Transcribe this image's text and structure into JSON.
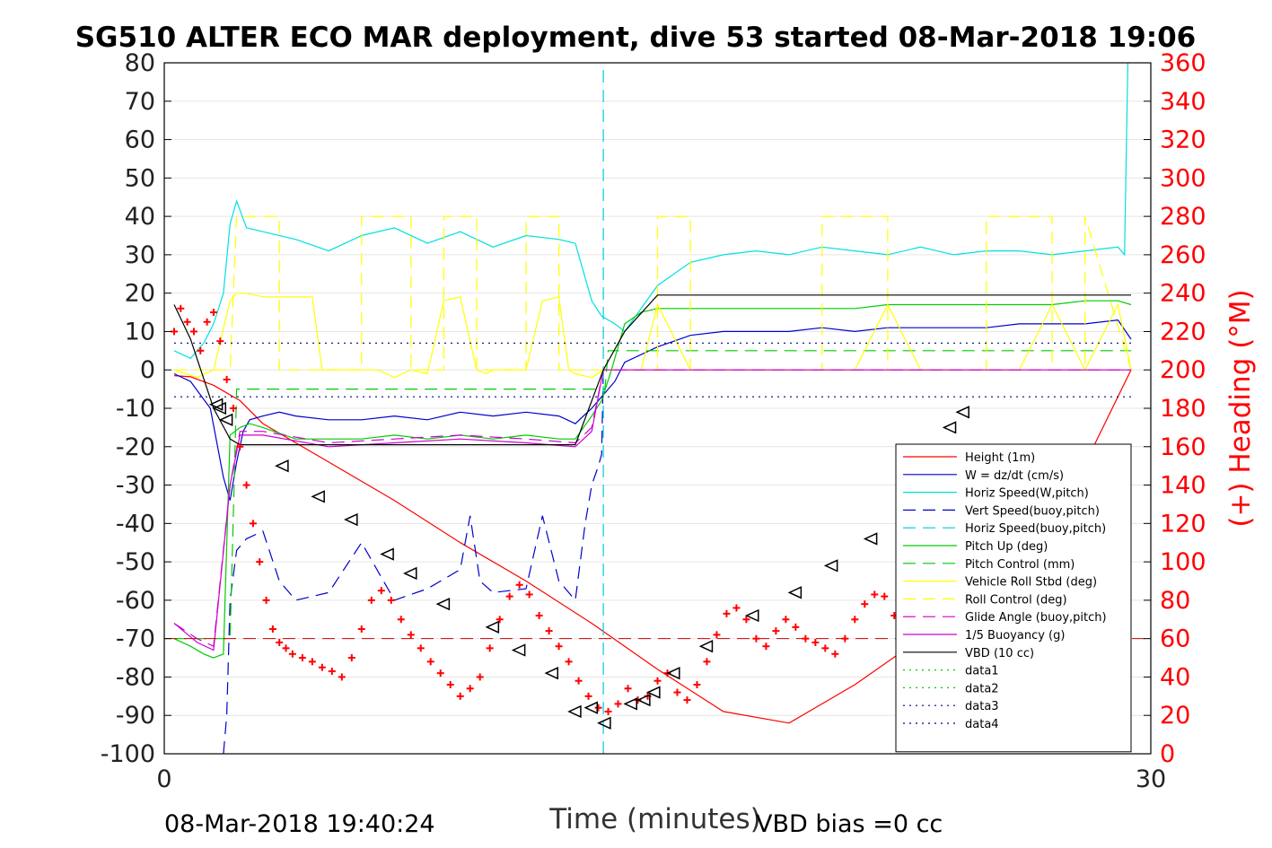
{
  "chart_data": {
    "type": "line",
    "title": "SG510 ALTER ECO MAR deployment, dive 53 started 08-Mar-2018 19:06",
    "xlabel": "Time (minutes)",
    "ylabel_right": "(+) Heading (°M)",
    "xlim": [
      0,
      30
    ],
    "ylim_left": [
      -100,
      80
    ],
    "ylim_right": [
      0,
      360
    ],
    "x_ticks": [
      "0",
      "30"
    ],
    "y_ticks_left": [
      "80",
      "70",
      "60",
      "50",
      "40",
      "30",
      "20",
      "10",
      "0",
      "-10",
      "-20",
      "-30",
      "-40",
      "-50",
      "-60",
      "-70",
      "-80",
      "-90",
      "-100"
    ],
    "y_ticks_right": [
      "360",
      "340",
      "320",
      "300",
      "280",
      "260",
      "240",
      "220",
      "200",
      "180",
      "160",
      "140",
      "120",
      "100",
      "80",
      "60",
      "40",
      "20",
      "0"
    ],
    "footer_left": "08-Mar-2018 19:40:24",
    "footer_right": "VBD bias =0 cc",
    "colors": {
      "right_axis": "#ff0000",
      "grid": "#e6e6e6"
    },
    "legend_placement": "lower-right",
    "series": [
      {
        "name": "Height (1m)",
        "color": "#ff0000",
        "style": "solid",
        "x": [
          0.3,
          0.8,
          1.5,
          2.3,
          3.0,
          5,
          7,
          9,
          11,
          13,
          15,
          17,
          19,
          21,
          23,
          25,
          27,
          29.4
        ],
        "y": [
          -1.5,
          -1.8,
          -4,
          -8,
          -14,
          -24,
          -34,
          -45,
          -55,
          -66,
          -78,
          -89,
          -92,
          -82,
          -70,
          -58,
          -42,
          0
        ]
      },
      {
        "name": "W = dz/dt (cm/s)",
        "color": "#0000cc",
        "style": "solid",
        "x": [
          0.3,
          0.8,
          1.4,
          1.8,
          2.0,
          2.2,
          2.4,
          2.6,
          3.0,
          3.5,
          4,
          5,
          6,
          7,
          8,
          9,
          10,
          11,
          12,
          12.5,
          13,
          13.3,
          13.7,
          14,
          15,
          16,
          17,
          18,
          19,
          20,
          21,
          22,
          23,
          24,
          25,
          26,
          27,
          28,
          29,
          29.4
        ],
        "y": [
          -1,
          -3,
          -10,
          -28,
          -34,
          -24,
          -16,
          -13,
          -12,
          -11,
          -12,
          -13,
          -13,
          -12,
          -13,
          -11,
          -12,
          -11,
          -12,
          -14,
          -10,
          -7,
          -3,
          2,
          6,
          9,
          10,
          10,
          10,
          11,
          10,
          11,
          11,
          11,
          11,
          12,
          12,
          12,
          13,
          8
        ]
      },
      {
        "name": "Horiz Speed(W,pitch)",
        "color": "#00e0e0",
        "style": "solid",
        "x": [
          0.3,
          0.8,
          1.2,
          1.5,
          1.8,
          2.0,
          2.2,
          2.5,
          3,
          4,
          5,
          6,
          7,
          8,
          9,
          10,
          11,
          12,
          12.5,
          13,
          13.3,
          13.7,
          14,
          15,
          16,
          17,
          18,
          19,
          20,
          21,
          22,
          23,
          24,
          25,
          26,
          27,
          28,
          29,
          29.2,
          29.3
        ],
        "y": [
          5,
          3,
          7,
          12,
          20,
          38,
          44,
          37,
          36,
          34,
          31,
          35,
          37,
          33,
          36,
          32,
          35,
          34,
          33,
          18,
          14,
          12,
          10,
          22,
          28,
          30,
          31,
          30,
          32,
          31,
          30,
          32,
          30,
          31,
          31,
          30,
          31,
          32,
          30,
          80
        ]
      },
      {
        "name": "Vert Speed(buoy,pitch)",
        "color": "#0000cc",
        "style": "dashed",
        "x": [
          1.8,
          1.9,
          2.0,
          2.2,
          2.5,
          3,
          3.5,
          4,
          5,
          6,
          7,
          8,
          9,
          9.3,
          9.6,
          10,
          11,
          11.5,
          12,
          12.5,
          12.8,
          13,
          13.2,
          13.3,
          13.35
        ],
        "y": [
          -100,
          -90,
          -60,
          -47,
          -44,
          -42,
          -55,
          -60,
          -58,
          -45,
          -60,
          -57,
          -52,
          -38,
          -55,
          -58,
          -57,
          -38,
          -55,
          -60,
          -40,
          -30,
          -25,
          -22,
          0
        ]
      },
      {
        "name": "Horiz Speed(buoy,pitch)",
        "color": "#00c8e0",
        "style": "dashed",
        "x": [
          13.35,
          13.35
        ],
        "y": [
          -100,
          80
        ]
      },
      {
        "name": "Pitch Up (deg)",
        "color": "#00cc00",
        "style": "solid",
        "x": [
          0.3,
          0.8,
          1.2,
          1.5,
          1.8,
          2.0,
          2.3,
          2.6,
          3,
          4,
          5,
          6,
          7,
          8,
          9,
          10,
          11,
          12,
          12.5,
          13,
          13.3,
          13.6,
          14,
          14.5,
          15,
          16,
          17,
          18,
          19,
          20,
          21,
          22,
          23,
          24,
          25,
          26,
          27,
          28,
          29,
          29.4
        ],
        "y": [
          -70,
          -72,
          -74,
          -75,
          -74,
          -17,
          -15,
          -14,
          -15,
          -18,
          -18,
          -18,
          -17,
          -18,
          -17,
          -18,
          -17,
          -18,
          -18,
          -12,
          -8,
          0,
          12,
          15,
          16,
          16,
          16,
          16,
          16,
          16,
          16,
          17,
          17,
          17,
          17,
          17,
          17,
          18,
          18,
          17
        ]
      },
      {
        "name": "Pitch Control (mm)",
        "color": "#00cc00",
        "style": "dashed",
        "x": [
          0.3,
          1.5,
          2.0,
          2.2,
          3,
          13.3,
          13.4,
          13.5,
          29.4
        ],
        "y": [
          -70,
          -70,
          -70,
          -5,
          -5,
          -5,
          -5,
          5,
          5
        ]
      },
      {
        "name": "Vehicle Roll Stbd (deg)",
        "color": "#ffff00",
        "style": "solid",
        "x": [
          0.3,
          1.0,
          1.5,
          2.0,
          2.2,
          2.5,
          3.0,
          3.5,
          4.0,
          4.5,
          4.8,
          5.0,
          6.5,
          7,
          7.5,
          8,
          8.5,
          9,
          9.5,
          9.8,
          10,
          11,
          11.5,
          12,
          12.3,
          12.5,
          13,
          13.35,
          14,
          14.5,
          15,
          16,
          17,
          18,
          19,
          20,
          21,
          22,
          23,
          24,
          25,
          26,
          27,
          28,
          29,
          29.4
        ],
        "y": [
          0,
          -2,
          0,
          18,
          20,
          20,
          19,
          19,
          19,
          19,
          0,
          0,
          0,
          -2,
          0,
          -1,
          18,
          19,
          0,
          -1,
          0,
          0,
          18,
          19,
          0,
          -1,
          -2,
          0,
          0,
          0,
          17,
          0,
          0,
          0,
          0,
          0,
          0,
          17,
          0,
          0,
          0,
          0,
          17,
          0,
          17,
          0
        ]
      },
      {
        "name": "Roll Control (deg)",
        "color": "#ffff00",
        "style": "dashed",
        "x": [
          0.3,
          1.5,
          2.0,
          2.2,
          3.5,
          3.5,
          6,
          6,
          7.5,
          7.5,
          8.5,
          8.5,
          9.5,
          9.5,
          11,
          11,
          12,
          12,
          13,
          13,
          13.5,
          13.5,
          15,
          15,
          16,
          16,
          18,
          18,
          20,
          20,
          22,
          22,
          24,
          24,
          25,
          25,
          27,
          27,
          28,
          28,
          29.4
        ],
        "y": [
          0,
          0,
          0,
          40,
          40,
          0,
          0,
          40,
          40,
          0,
          0,
          40,
          40,
          0,
          0,
          40,
          40,
          0,
          0,
          0,
          0,
          0,
          0,
          40,
          40,
          0,
          0,
          0,
          0,
          40,
          40,
          0,
          0,
          0,
          0,
          40,
          40,
          0,
          0,
          40,
          0
        ]
      },
      {
        "name": "Glide Angle (buoy,pitch)",
        "color": "#cc00cc",
        "style": "dashed",
        "x": [
          0.3,
          1.0,
          1.5,
          2.0,
          2.3,
          3,
          5,
          7,
          9,
          11,
          12.5,
          13,
          13.35,
          14,
          29.4
        ],
        "y": [
          -66,
          -70,
          -72,
          -30,
          -16,
          -16,
          -19,
          -18,
          -17,
          -18,
          -19,
          -15,
          0,
          0,
          0
        ]
      },
      {
        "name": "1/5 Buoyancy (g)",
        "color": "#cc00cc",
        "style": "solid",
        "x": [
          0.3,
          1.0,
          1.5,
          2.0,
          2.3,
          3,
          5,
          7,
          9,
          11,
          12.5,
          13,
          13.35,
          14,
          29.4
        ],
        "y": [
          -66,
          -71,
          -73,
          -30,
          -17,
          -17,
          -20,
          -19,
          -18,
          -19,
          -20,
          -16,
          0,
          0,
          0
        ]
      },
      {
        "name": "VBD (10 cc)",
        "color": "#000000",
        "style": "solid",
        "x": [
          0.3,
          0.8,
          1.5,
          2.0,
          2.3,
          2.8,
          5,
          8,
          11,
          12.5,
          13.35,
          14,
          15,
          16,
          20,
          25,
          29.4
        ],
        "y": [
          17,
          8,
          -10,
          -18,
          -19.5,
          -19.5,
          -19.5,
          -19.5,
          -19.5,
          -19.5,
          0,
          10,
          19.5,
          19.5,
          19.5,
          19.5,
          19.5
        ]
      },
      {
        "name": "data1",
        "color": "#00cc00",
        "style": "dotted",
        "x": [],
        "y": []
      },
      {
        "name": "data2",
        "color": "#00cc00",
        "style": "dotted",
        "x": [],
        "y": []
      },
      {
        "name": "data3",
        "color": "#000080",
        "style": "dotted",
        "x": [
          0.3,
          29.4
        ],
        "y": [
          7,
          7
        ]
      },
      {
        "name": "data4",
        "color": "#000080",
        "style": "dotted",
        "x": [
          0.3,
          29.4
        ],
        "y": [
          -7,
          -7
        ]
      }
    ],
    "heading": {
      "axis": "right",
      "color": "#ff0000",
      "marker": "+",
      "x": [
        0.3,
        0.5,
        0.7,
        0.9,
        1.1,
        1.3,
        1.5,
        1.7,
        1.9,
        2.1,
        2.3,
        2.5,
        2.7,
        2.9,
        3.1,
        3.3,
        3.5,
        3.7,
        3.9,
        4.2,
        4.5,
        4.8,
        5.1,
        5.4,
        5.7,
        6.0,
        6.3,
        6.6,
        6.9,
        7.2,
        7.5,
        7.8,
        8.1,
        8.4,
        8.7,
        9.0,
        9.3,
        9.6,
        9.9,
        10.2,
        10.5,
        10.8,
        11.1,
        11.4,
        11.7,
        12.0,
        12.3,
        12.6,
        12.9,
        13.2,
        13.5,
        13.8,
        14.1,
        14.4,
        14.7,
        15.0,
        15.3,
        15.6,
        15.9,
        16.2,
        16.5,
        16.8,
        17.1,
        17.4,
        17.7,
        18.0,
        18.3,
        18.6,
        18.9,
        19.2,
        19.5,
        19.8,
        20.1,
        20.4,
        20.7,
        21.0,
        21.3,
        21.6,
        21.9,
        22.2,
        22.5,
        22.8
      ],
      "y": [
        220,
        232,
        225,
        220,
        210,
        225,
        230,
        215,
        195,
        180,
        160,
        140,
        120,
        100,
        80,
        65,
        58,
        55,
        52,
        50,
        48,
        45,
        43,
        40,
        50,
        65,
        80,
        85,
        80,
        70,
        62,
        55,
        48,
        42,
        36,
        30,
        34,
        40,
        55,
        70,
        82,
        88,
        83,
        72,
        64,
        56,
        48,
        38,
        30,
        24,
        22,
        26,
        34,
        28,
        30,
        38,
        42,
        32,
        28,
        36,
        48,
        62,
        73,
        76,
        70,
        60,
        56,
        64,
        70,
        66,
        60,
        58,
        55,
        52,
        60,
        70,
        78,
        83,
        82,
        72,
        64,
        56
      ]
    },
    "dive_markers": {
      "marker": "triangle",
      "x": [
        1.6,
        1.7,
        1.9,
        3.6,
        4.7,
        5.7,
        6.8,
        7.5,
        8.5,
        10,
        10.8,
        11.8,
        12.5,
        13,
        13.4,
        14.2,
        14.6,
        14.9,
        15.5,
        16.5,
        17.9,
        19.2,
        20.3,
        21.5,
        23.9,
        24.3
      ],
      "y": [
        -9,
        -10,
        -13,
        -25,
        -33,
        -39,
        -48,
        -53,
        -61,
        -67,
        -73,
        -79,
        -89,
        -88,
        -92,
        -87,
        -86,
        -84,
        -79,
        -72,
        -64,
        -58,
        -51,
        -44,
        -15,
        -11
      ]
    }
  }
}
